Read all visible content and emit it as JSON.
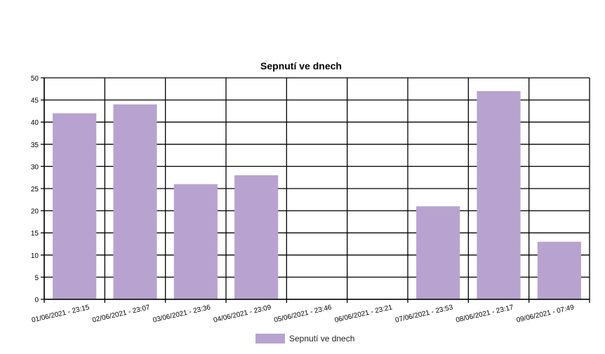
{
  "chart_data": {
    "type": "bar",
    "title": "Sepnutí ve dnech",
    "categories": [
      "01/06/2021 - 23:15",
      "02/06/2021 - 23:07",
      "03/06/2021 - 23:36",
      "04/06/2021 - 23:09",
      "05/06/2021 - 23:46",
      "06/06/2021 - 23:21",
      "07/06/2021 - 23:53",
      "08/06/2021 - 23:17",
      "09/06/2021 - 07:49"
    ],
    "series": [
      {
        "name": "Sepnutí ve dnech",
        "values": [
          42,
          44,
          26,
          28,
          0,
          0,
          21,
          47,
          13
        ]
      }
    ],
    "xlabel": "",
    "ylabel": "",
    "ylim": [
      0,
      50
    ],
    "yticks": [
      0,
      5,
      10,
      15,
      20,
      25,
      30,
      35,
      40,
      45,
      50
    ],
    "grid": true,
    "legend_position": "bottom-center",
    "colors": {
      "bar": "#b8a3d0",
      "grid": "#000000",
      "text": "#000000"
    }
  }
}
